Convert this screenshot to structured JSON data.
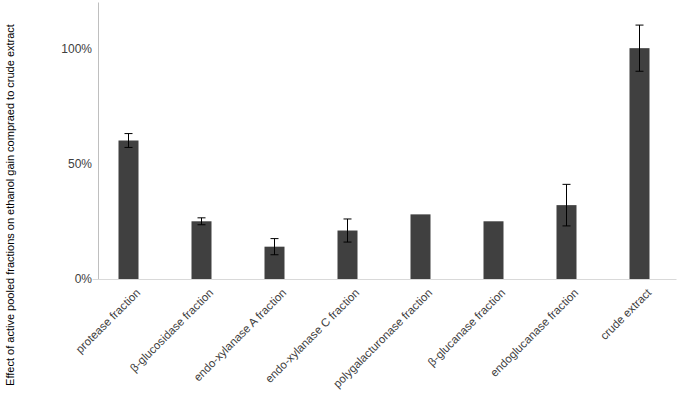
{
  "chart_data": {
    "type": "bar",
    "y_label": "Effect of active pooled fractions on ethanol gain compraed to crude extract",
    "categories": [
      "protease fraction",
      "β-glucosidase fraction",
      "endo-xylanase A fraction",
      "endo-xylanase C fraction",
      "polygalacturonase fraction",
      "β-glucanase fraction",
      "endoglucanase fraction",
      "crude extract"
    ],
    "values": [
      60,
      25,
      14,
      21,
      28,
      25,
      32,
      100
    ],
    "errors": [
      3,
      1.5,
      3.5,
      5,
      null,
      null,
      9,
      10
    ],
    "color": "#404040",
    "ylim": [
      0,
      120
    ],
    "yticks": [
      {
        "value": 0,
        "label": "0%"
      },
      {
        "value": 50,
        "label": "50%"
      },
      {
        "value": 100,
        "label": "100%"
      }
    ],
    "grid": false
  }
}
